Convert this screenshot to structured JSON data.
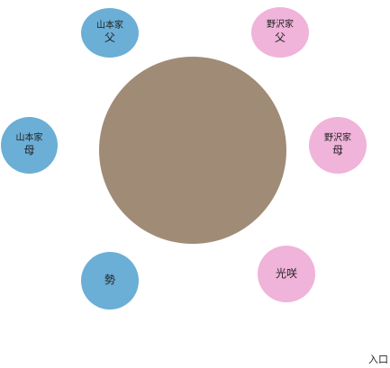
{
  "colors": {
    "table": "#a08b76",
    "yamamoto_side": "#6baed6",
    "nozawa_side": "#f0b3d9"
  },
  "seats": [
    {
      "id": "yamamoto-father",
      "family": "山本家",
      "role": "父",
      "side": "yamamoto"
    },
    {
      "id": "nozawa-father",
      "family": "野沢家",
      "role": "父",
      "side": "nozawa"
    },
    {
      "id": "yamamoto-mother",
      "family": "山本家",
      "role": "母",
      "side": "yamamoto"
    },
    {
      "id": "nozawa-mother",
      "family": "野沢家",
      "role": "母",
      "side": "nozawa"
    },
    {
      "id": "sei",
      "label": "勢",
      "side": "yamamoto"
    },
    {
      "id": "mitsuki",
      "label": "光咲",
      "side": "nozawa"
    }
  ],
  "entrance": {
    "label": "入口"
  }
}
